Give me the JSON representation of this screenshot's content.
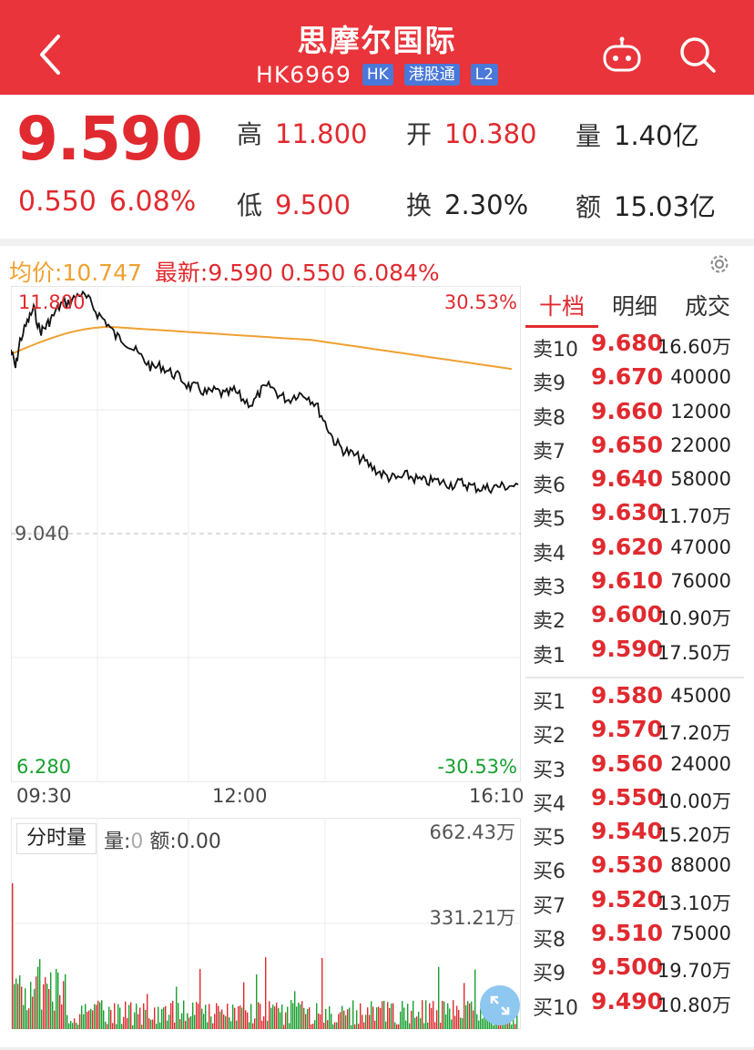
{
  "header": {
    "title": "思摩尔国际",
    "code": "HK6969",
    "tags": [
      "HK",
      "港股通",
      "L2"
    ]
  },
  "quote": {
    "price": "9.590",
    "change": "0.550",
    "change_pct": "6.08%",
    "high_label": "高",
    "high": "11.800",
    "open_label": "开",
    "open": "10.380",
    "volume_label": "量",
    "volume": "1.40亿",
    "low_label": "低",
    "low": "9.500",
    "turnover_label": "换",
    "turnover": "2.30%",
    "amount_label": "额",
    "amount": "15.03亿"
  },
  "chart": {
    "avg_label": "均价:10.747",
    "latest_label": "最新:9.590 0.550 6.084%",
    "y_top": "11.800",
    "y_mid": "9.040",
    "y_bottom": "6.280",
    "pct_top": "30.53%",
    "pct_bottom": "-30.53%",
    "time_start": "09:30",
    "time_mid": "12:00",
    "time_end": "16:10",
    "colors": {
      "price": "#111111",
      "avg": "#f0a030",
      "up": "#e02a2f",
      "down": "#17a02e"
    }
  },
  "volume": {
    "title": "分时量",
    "vol_label": "量:",
    "vol_value": "0",
    "amount_label": "额:",
    "amount_value": "0.00",
    "max_label": "662.43万",
    "mid_label": "331.21万"
  },
  "order_book": {
    "tabs": [
      "十档",
      "明细",
      "成交"
    ],
    "asks": [
      {
        "level": "卖10",
        "price": "9.680",
        "vol": "16.60万"
      },
      {
        "level": "卖9",
        "price": "9.670",
        "vol": "40000"
      },
      {
        "level": "卖8",
        "price": "9.660",
        "vol": "12000"
      },
      {
        "level": "卖7",
        "price": "9.650",
        "vol": "22000"
      },
      {
        "level": "卖6",
        "price": "9.640",
        "vol": "58000"
      },
      {
        "level": "卖5",
        "price": "9.630",
        "vol": "11.70万"
      },
      {
        "level": "卖4",
        "price": "9.620",
        "vol": "47000"
      },
      {
        "level": "卖3",
        "price": "9.610",
        "vol": "76000"
      },
      {
        "level": "卖2",
        "price": "9.600",
        "vol": "10.90万"
      },
      {
        "level": "卖1",
        "price": "9.590",
        "vol": "17.50万"
      }
    ],
    "bids": [
      {
        "level": "买1",
        "price": "9.580",
        "vol": "45000"
      },
      {
        "level": "买2",
        "price": "9.570",
        "vol": "17.20万"
      },
      {
        "level": "买3",
        "price": "9.560",
        "vol": "24000"
      },
      {
        "level": "买4",
        "price": "9.550",
        "vol": "10.00万"
      },
      {
        "level": "买5",
        "price": "9.540",
        "vol": "15.20万"
      },
      {
        "level": "买6",
        "price": "9.530",
        "vol": "88000"
      },
      {
        "level": "买7",
        "price": "9.520",
        "vol": "13.10万"
      },
      {
        "level": "买8",
        "price": "9.510",
        "vol": "75000"
      },
      {
        "level": "买9",
        "price": "9.500",
        "vol": "19.70万"
      },
      {
        "level": "买10",
        "price": "9.490",
        "vol": "10.80万"
      }
    ]
  }
}
